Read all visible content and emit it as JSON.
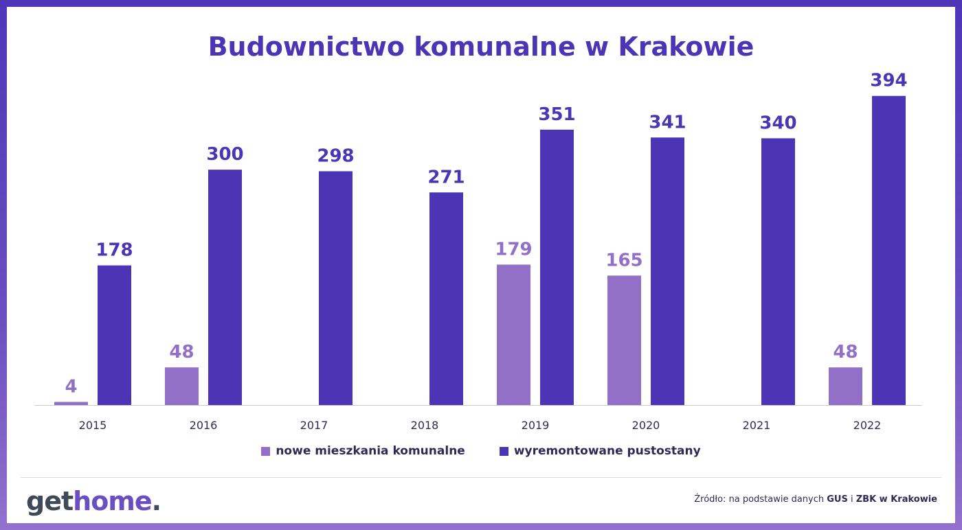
{
  "title": "Budownictwo komunalne w Krakowie",
  "chart_data": {
    "type": "bar",
    "title": "Budownictwo komunalne w Krakowie",
    "categories": [
      "2015",
      "2016",
      "2017",
      "2018",
      "2019",
      "2020",
      "2021",
      "2022"
    ],
    "series": [
      {
        "name": "nowe mieszkania komunalne",
        "color": "#9370c8",
        "label_color": "#9370c8",
        "values": [
          4,
          48,
          null,
          null,
          179,
          165,
          null,
          48
        ]
      },
      {
        "name": "wyremontowane pustostany",
        "color": "#4b35b5",
        "label_color": "#4b35b5",
        "values": [
          178,
          300,
          298,
          271,
          351,
          341,
          340,
          394
        ]
      }
    ],
    "ylim": [
      0,
      420
    ],
    "grid": false,
    "legend_position": "bottom"
  },
  "legend": {
    "items": [
      {
        "label": "nowe mieszkania komunalne",
        "color": "#9370c8"
      },
      {
        "label": "wyremontowane pustostany",
        "color": "#4b35b5"
      }
    ]
  },
  "logo": {
    "part1": "get",
    "part2": "home",
    "part3": "."
  },
  "source": {
    "prefix": "Źródło: na podstawie danych",
    "gus": "GUS",
    "conj": "i",
    "zbk": "ZBK w Krakowie"
  }
}
